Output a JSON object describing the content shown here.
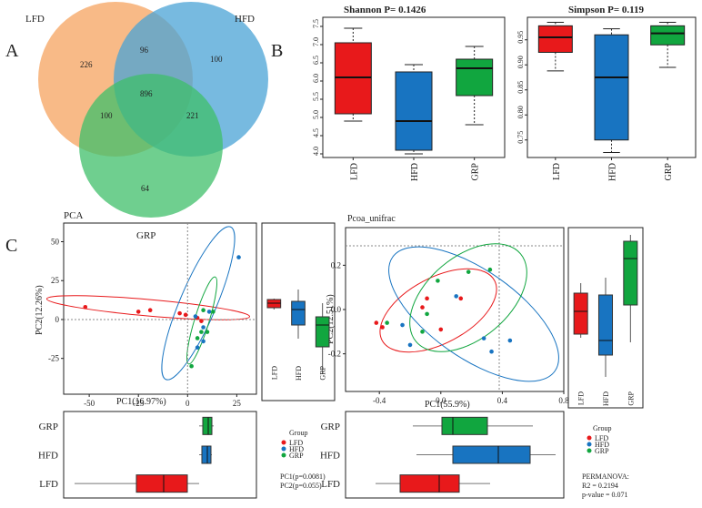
{
  "panel_labels": {
    "a": "A",
    "b": "B",
    "c": "C"
  },
  "venn": {
    "sets": [
      "LFD",
      "HFD",
      "GRP"
    ],
    "colors": {
      "LFD": "#f5a35f",
      "HFD": "#4aa3d6",
      "GRP": "#3fbf6a"
    },
    "counts": {
      "LFD_only": "226",
      "HFD_only": "100",
      "GRP_only": "64",
      "LFD_HFD": "96",
      "LFD_GRP": "100",
      "HFD_GRP": "221",
      "all": "896"
    }
  },
  "chart_data": [
    {
      "type": "box",
      "title": "Shannon  P= 0.1426",
      "categories": [
        "LFD",
        "HFD",
        "GRP"
      ],
      "colors": [
        "#e8191b",
        "#1874c1",
        "#11a63f"
      ],
      "boxes": [
        {
          "min": 4.9,
          "q1": 5.1,
          "median": 6.1,
          "q3": 7.05,
          "max": 7.45
        },
        {
          "min": 4.0,
          "q1": 4.1,
          "median": 4.9,
          "q3": 6.25,
          "max": 6.45
        },
        {
          "min": 4.8,
          "q1": 5.6,
          "median": 6.35,
          "q3": 6.6,
          "max": 6.95
        }
      ],
      "ylim": [
        3.9,
        7.75
      ],
      "yticks": [
        "4.0",
        "4.5",
        "5.0",
        "5.5",
        "6.0",
        "6.5",
        "7.0",
        "7.5"
      ]
    },
    {
      "type": "box",
      "title": "Simpson  P= 0.119",
      "categories": [
        "LFD",
        "HFD",
        "GRP"
      ],
      "colors": [
        "#e8191b",
        "#1874c1",
        "#11a63f"
      ],
      "boxes": [
        {
          "min": 0.888,
          "q1": 0.925,
          "median": 0.955,
          "q3": 0.978,
          "max": 0.985
        },
        {
          "min": 0.725,
          "q1": 0.75,
          "median": 0.875,
          "q3": 0.96,
          "max": 0.972
        },
        {
          "min": 0.895,
          "q1": 0.94,
          "median": 0.963,
          "q3": 0.978,
          "max": 0.985
        }
      ],
      "ylim": [
        0.715,
        0.995
      ],
      "yticks": [
        "0.75",
        "0.80",
        "0.85",
        "0.90",
        "0.95"
      ]
    },
    {
      "type": "scatter",
      "title": "PCA",
      "xlabel": "PC1(16.97%)",
      "ylabel": "PC2(12.26%)",
      "xlim": [
        -63,
        35
      ],
      "ylim": [
        -48,
        62
      ],
      "xticks": [
        "-50",
        "-25",
        "0",
        "25"
      ],
      "yticks": [
        "50",
        "25",
        "0",
        "-25"
      ],
      "series": [
        {
          "name": "LFD",
          "color": "#e8191b",
          "points": [
            [
              -52,
              8
            ],
            [
              -25,
              5
            ],
            [
              -19,
              6
            ],
            [
              -4,
              4
            ],
            [
              -1,
              3
            ],
            [
              5,
              1
            ],
            [
              7,
              -1
            ]
          ]
        },
        {
          "name": "HFD",
          "color": "#1874c1",
          "points": [
            [
              26,
              40
            ],
            [
              4,
              2
            ],
            [
              8,
              -5
            ],
            [
              11,
              5
            ],
            [
              8,
              -14
            ],
            [
              5,
              -18
            ]
          ]
        },
        {
          "name": "GRP",
          "color": "#11a63f",
          "points": [
            [
              8,
              6
            ],
            [
              10,
              -8
            ],
            [
              13,
              5
            ],
            [
              7,
              -8
            ],
            [
              5,
              -12
            ],
            [
              2,
              -30
            ]
          ]
        }
      ]
    },
    {
      "type": "scatter",
      "title": "Pcoa_unifrac",
      "xlabel": "PC1(55.9%)",
      "ylabel": "PC2(12.51%)",
      "xlim": [
        -0.62,
        0.8
      ],
      "ylim": [
        -0.37,
        0.37
      ],
      "xticks": [
        "-0.4",
        "0.0",
        "0.4",
        "0.8"
      ],
      "yticks": [
        "0.2",
        "0.0",
        "-0.2"
      ],
      "series": [
        {
          "name": "LFD",
          "color": "#e8191b",
          "points": [
            [
              -0.42,
              -0.06
            ],
            [
              -0.38,
              -0.08
            ],
            [
              -0.12,
              0.01
            ],
            [
              -0.09,
              0.05
            ],
            [
              0.0,
              -0.09
            ],
            [
              0.13,
              0.05
            ]
          ]
        },
        {
          "name": "HFD",
          "color": "#1874c1",
          "points": [
            [
              0.1,
              0.06
            ],
            [
              -0.25,
              -0.07
            ],
            [
              -0.2,
              -0.16
            ],
            [
              0.28,
              -0.13
            ],
            [
              0.33,
              -0.19
            ],
            [
              0.45,
              -0.14
            ]
          ]
        },
        {
          "name": "GRP",
          "color": "#11a63f",
          "points": [
            [
              0.32,
              0.18
            ],
            [
              0.18,
              0.17
            ],
            [
              -0.02,
              0.13
            ],
            [
              -0.09,
              -0.02
            ],
            [
              -0.12,
              -0.1
            ],
            [
              -0.35,
              -0.06
            ]
          ]
        }
      ]
    }
  ],
  "pca": {
    "box_side_labels": [
      "LFD",
      "HFD",
      "GRP"
    ],
    "box_bottom_labels": [
      "GRP",
      "HFD",
      "LFD"
    ],
    "legend_title": "Group",
    "legend_items": [
      "LFD",
      "HFD",
      "GRP"
    ],
    "stat1": "PC1(p=0.0081)",
    "stat2": "PC2(p=0.055)"
  },
  "pcoa": {
    "box_side_labels": [
      "LFD",
      "HFD",
      "GRP"
    ],
    "box_bottom_labels": [
      "GRP",
      "HFD",
      "LFD"
    ],
    "legend_title": "Group",
    "legend_items": [
      "LFD",
      "HFD",
      "GRP"
    ],
    "stat1": "PERMANOVA:",
    "stat2": "R2 = 0.2194",
    "stat3": "p-value = 0.071"
  }
}
